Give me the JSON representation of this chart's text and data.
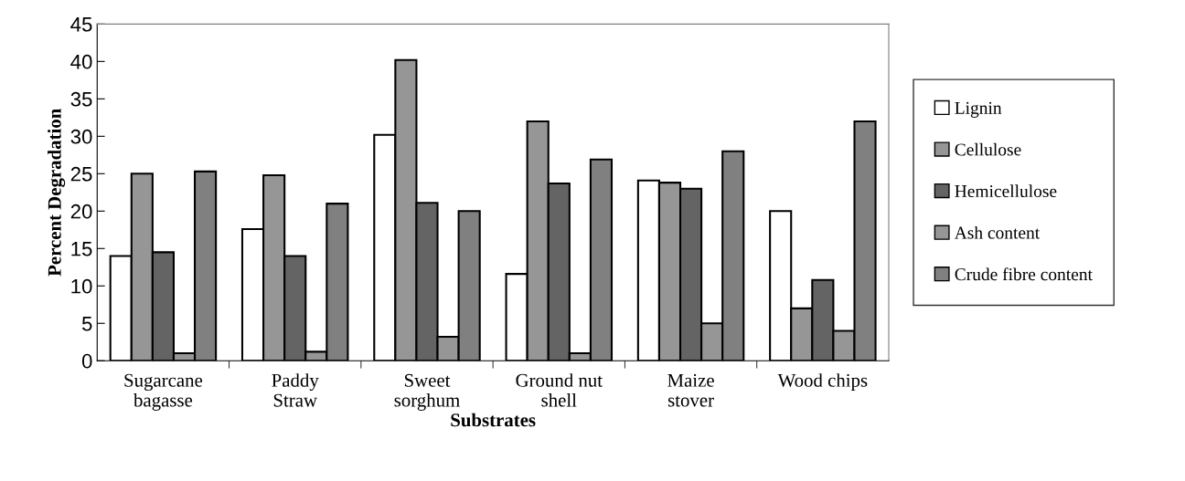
{
  "chart_data": {
    "type": "bar",
    "xlabel": "Substrates",
    "ylabel": "Percent Degradation",
    "categories": [
      "Sugarcane\nbagasse",
      "Paddy\nStraw",
      "Sweet\nsorghum",
      "Ground nut\nshell",
      "Maize\nstover",
      "Wood chips"
    ],
    "series": [
      {
        "name": "Lignin",
        "color": "#ffffff",
        "values": [
          14,
          17.6,
          30.2,
          11.6,
          24.1,
          20
        ]
      },
      {
        "name": "Cellulose",
        "color": "#969696",
        "values": [
          25,
          24.8,
          40.2,
          32,
          23.8,
          7
        ]
      },
      {
        "name": "Hemicellulose",
        "color": "#646464",
        "values": [
          14.5,
          14,
          21.1,
          23.7,
          23,
          10.8
        ]
      },
      {
        "name": "Ash content",
        "color": "#969696",
        "values": [
          1,
          1.2,
          3.2,
          1,
          5,
          4
        ]
      },
      {
        "name": "Crude fibre content",
        "color": "#808080",
        "values": [
          25.3,
          21,
          20,
          26.9,
          28,
          32
        ]
      }
    ],
    "ylim": [
      0,
      45
    ],
    "yticks": [
      0,
      5,
      10,
      15,
      20,
      25,
      30,
      35,
      40,
      45
    ],
    "grid": false,
    "legend": "right"
  }
}
